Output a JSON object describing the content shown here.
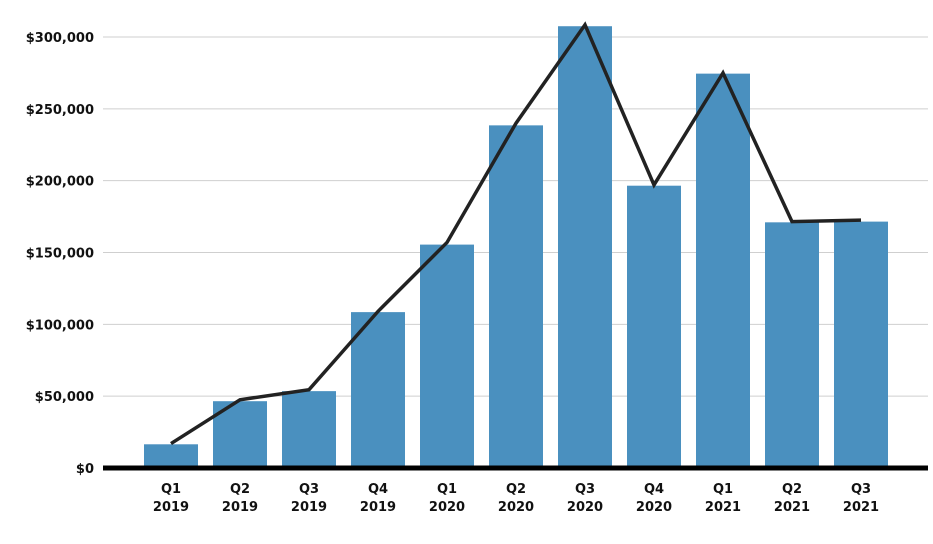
{
  "chart_data": {
    "type": "bar",
    "title": "",
    "xlabel": "",
    "ylabel": "",
    "categories": [
      [
        "Q1",
        "2019"
      ],
      [
        "Q2",
        "2019"
      ],
      [
        "Q3",
        "2019"
      ],
      [
        "Q4",
        "2019"
      ],
      [
        "Q1",
        "2020"
      ],
      [
        "Q2",
        "2020"
      ],
      [
        "Q3",
        "2020"
      ],
      [
        "Q4",
        "2020"
      ],
      [
        "Q1",
        "2021"
      ],
      [
        "Q2",
        "2021"
      ],
      [
        "Q3",
        "2021"
      ]
    ],
    "values": [
      16500,
      46500,
      53500,
      108500,
      155500,
      238500,
      307500,
      196500,
      274500,
      171000,
      171500
    ],
    "line_values": [
      17000,
      47500,
      54500,
      109000,
      157000,
      240000,
      308500,
      197000,
      275000,
      171500,
      172500
    ],
    "ylim": [
      0,
      300000
    ],
    "yticks": [
      "$0",
      "$50,000",
      "$100,000",
      "$150,000",
      "$200,000",
      "$250,000",
      "$300,000"
    ],
    "grid": true,
    "colors": {
      "bar": "#4a90bf",
      "line": "#222222",
      "grid": "#cfcfcf",
      "axis": "#000000"
    }
  }
}
